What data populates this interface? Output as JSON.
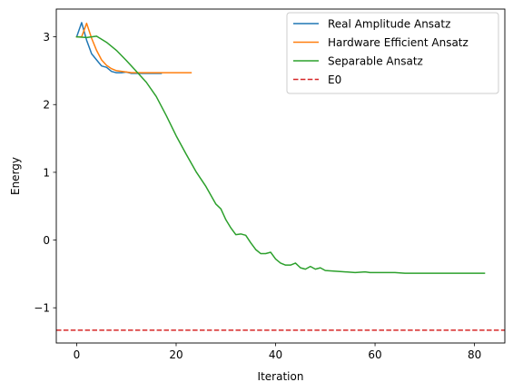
{
  "chart_data": {
    "type": "line",
    "title": "",
    "xlabel": "Iteration",
    "ylabel": "Energy",
    "xlim": [
      -4.1,
      86.1
    ],
    "ylim": [
      -1.52,
      3.41
    ],
    "xticks": [
      0,
      20,
      40,
      60,
      80
    ],
    "yticks": [
      -1,
      0,
      1,
      2,
      3
    ],
    "xtick_labels": [
      "0",
      "20",
      "40",
      "60",
      "80"
    ],
    "ytick_labels": [
      "−1",
      "0",
      "1",
      "2",
      "3"
    ],
    "grid": false,
    "legend_position": "top-right",
    "series": [
      {
        "name": "Real Amplitude Ansatz",
        "color": "#1f77b4",
        "style": "solid",
        "x": [
          0,
          1,
          2,
          3,
          4,
          5,
          6,
          7,
          8,
          9,
          10,
          11,
          12,
          13,
          14,
          15,
          16,
          17
        ],
        "y": [
          3.0,
          3.21,
          2.95,
          2.75,
          2.66,
          2.57,
          2.55,
          2.49,
          2.47,
          2.47,
          2.48,
          2.46,
          2.46,
          2.46,
          2.46,
          2.46,
          2.46,
          2.46
        ]
      },
      {
        "name": "Hardware Efficient Ansatz",
        "color": "#ff7f0e",
        "style": "solid",
        "x": [
          0,
          1,
          2,
          3,
          4,
          5,
          6,
          7,
          8,
          9,
          10,
          11,
          12,
          13,
          14,
          15,
          16,
          17,
          18,
          19,
          20,
          21,
          22,
          23
        ],
        "y": [
          3.0,
          3.0,
          3.2,
          2.98,
          2.8,
          2.66,
          2.58,
          2.53,
          2.5,
          2.49,
          2.48,
          2.47,
          2.47,
          2.47,
          2.47,
          2.47,
          2.47,
          2.47,
          2.47,
          2.47,
          2.47,
          2.47,
          2.47,
          2.47
        ]
      },
      {
        "name": "Separable Ansatz",
        "color": "#2ca02c",
        "style": "solid",
        "x": [
          0,
          2,
          4,
          6,
          8,
          10,
          12,
          14,
          16,
          18,
          20,
          22,
          24,
          26,
          28,
          29,
          30,
          31,
          32,
          33,
          34,
          35,
          36,
          37,
          38,
          39,
          40,
          41,
          42,
          43,
          44,
          45,
          46,
          47,
          48,
          49,
          50,
          52,
          54,
          56,
          58,
          59,
          60,
          62,
          64,
          66,
          68,
          70,
          72,
          74,
          76,
          78,
          80,
          82
        ],
        "y": [
          3.0,
          2.99,
          3.01,
          2.92,
          2.8,
          2.65,
          2.49,
          2.33,
          2.12,
          1.84,
          1.54,
          1.27,
          1.01,
          0.79,
          0.53,
          0.46,
          0.3,
          0.18,
          0.08,
          0.09,
          0.07,
          -0.04,
          -0.14,
          -0.2,
          -0.2,
          -0.18,
          -0.28,
          -0.34,
          -0.37,
          -0.37,
          -0.34,
          -0.41,
          -0.43,
          -0.39,
          -0.43,
          -0.41,
          -0.45,
          -0.46,
          -0.47,
          -0.48,
          -0.47,
          -0.48,
          -0.48,
          -0.48,
          -0.48,
          -0.49,
          -0.49,
          -0.49,
          -0.49,
          -0.49,
          -0.49,
          -0.49,
          -0.49,
          -0.49
        ]
      }
    ],
    "reference_lines": [
      {
        "name": "E0",
        "color": "#d62728",
        "style": "dashed",
        "y": -1.33
      }
    ]
  }
}
